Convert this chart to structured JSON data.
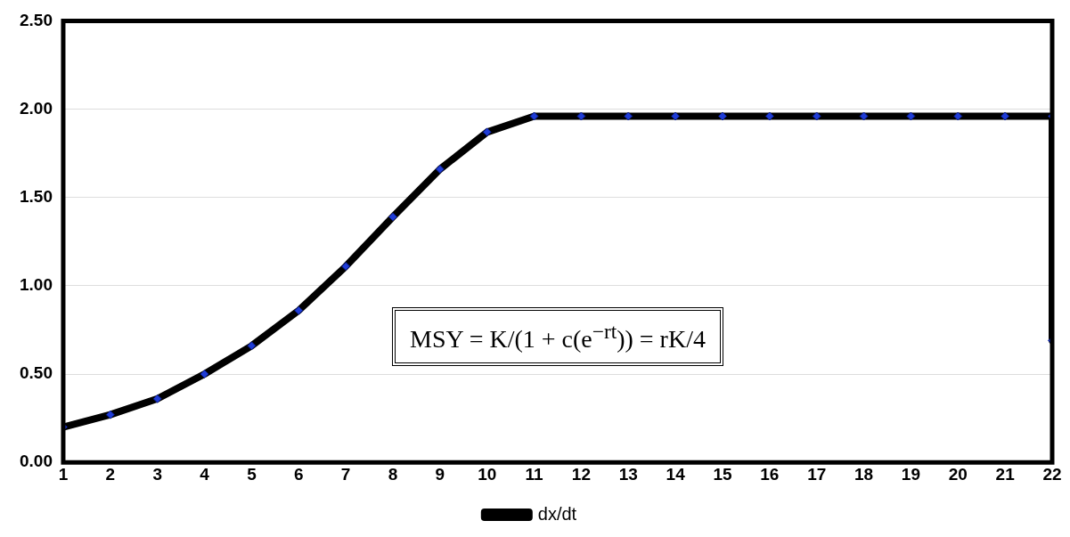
{
  "chart_data": {
    "type": "line",
    "x": [
      1,
      2,
      3,
      4,
      5,
      6,
      7,
      8,
      9,
      10,
      11,
      12,
      13,
      14,
      15,
      16,
      17,
      18,
      19,
      20,
      21,
      22,
      22
    ],
    "series": [
      {
        "name": "dx/dt",
        "color": "#000000",
        "values": [
          0.2,
          0.27,
          0.36,
          0.5,
          0.66,
          0.86,
          1.11,
          1.39,
          1.66,
          1.87,
          1.96,
          1.96,
          1.96,
          1.96,
          1.96,
          1.96,
          1.96,
          1.96,
          1.96,
          1.96,
          1.96,
          1.96,
          0.69
        ]
      }
    ],
    "xlim": [
      1,
      22
    ],
    "xticks": [
      1,
      2,
      3,
      4,
      5,
      6,
      7,
      8,
      9,
      10,
      11,
      12,
      13,
      14,
      15,
      16,
      17,
      18,
      19,
      20,
      21,
      22
    ],
    "ylim": [
      0,
      2.5
    ],
    "yticks": [
      {
        "value": 0,
        "label": "0.00"
      },
      {
        "value": 0.5,
        "label": "0.50"
      },
      {
        "value": 1,
        "label": "1.00"
      },
      {
        "value": 1.5,
        "label": "1.50"
      },
      {
        "value": 2,
        "label": "2.00"
      },
      {
        "value": 2.5,
        "label": "2.50"
      }
    ],
    "grid": "y",
    "legend": "bottom",
    "marker": "diamond",
    "line_style": "solid",
    "annotations": [
      "MSY = K/(1 + c(e$^{−rt}$)) = rK/4"
    ]
  }
}
